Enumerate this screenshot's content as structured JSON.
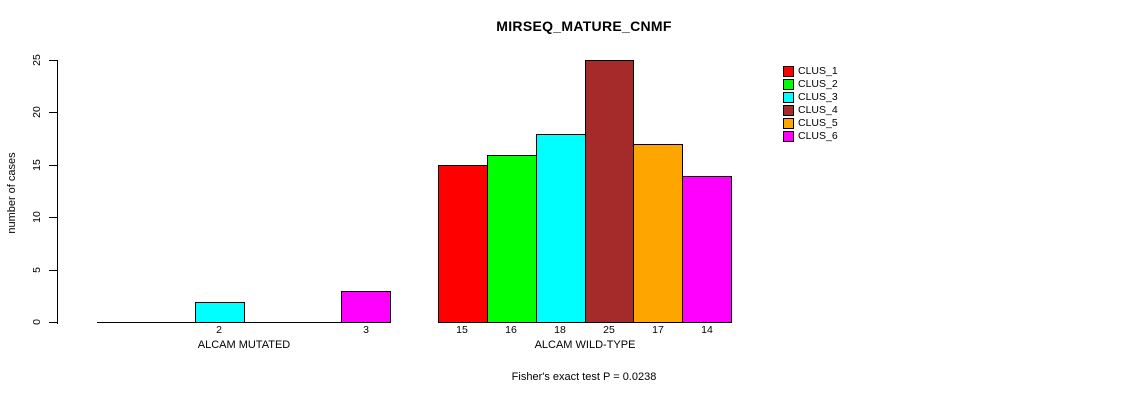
{
  "chart_data": {
    "type": "bar",
    "title": "MIRSEQ_MATURE_CNMF",
    "ylabel": "number of cases",
    "xlabel": "",
    "ylim": [
      0,
      25
    ],
    "yticks": [
      0,
      5,
      10,
      15,
      20,
      25
    ],
    "grid": false,
    "legend_position": "top-right",
    "categories": [
      "ALCAM MUTATED",
      "ALCAM WILD-TYPE"
    ],
    "series": [
      {
        "name": "CLUS_1",
        "color": "#FF0000",
        "values": [
          0,
          15
        ]
      },
      {
        "name": "CLUS_2",
        "color": "#00FF00",
        "values": [
          0,
          16
        ]
      },
      {
        "name": "CLUS_3",
        "color": "#00FFFF",
        "values": [
          2,
          18
        ]
      },
      {
        "name": "CLUS_4",
        "color": "#A52A2A",
        "values": [
          0,
          25
        ]
      },
      {
        "name": "CLUS_5",
        "color": "#FFA500",
        "values": [
          0,
          17
        ]
      },
      {
        "name": "CLUS_6",
        "color": "#FF00FF",
        "values": [
          3,
          14
        ]
      }
    ],
    "bar_value_labels": [
      [
        "",
        "",
        "2",
        "",
        "",
        "3"
      ],
      [
        "15",
        "16",
        "18",
        "25",
        "17",
        "14"
      ]
    ],
    "annotation": "Fisher's exact test P = 0.0238",
    "colors": {
      "axis": "#000000",
      "text": "#000000",
      "bar_border": "#000000",
      "background": "#FFFFFF"
    }
  }
}
